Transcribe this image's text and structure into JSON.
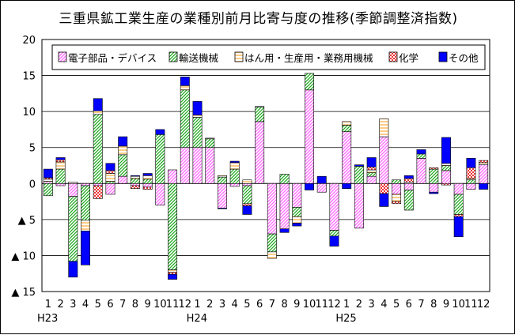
{
  "chart_data": {
    "type": "bar",
    "stacked": true,
    "title": "三重県鉱工業生産の業種別前月比寄与度の推移(季節調整済指数)",
    "ylim": [
      -15,
      20
    ],
    "yticks": [
      20,
      15,
      10,
      5,
      0,
      -5,
      -10,
      -15
    ],
    "ytick_labels": [
      "20",
      "15",
      "10",
      "5",
      "0",
      "▲ 5",
      "▲ 10",
      "▲ 15"
    ],
    "grid": true,
    "legend_position": "top-right",
    "categories": [
      "1",
      "2",
      "3",
      "4",
      "5",
      "6",
      "7",
      "8",
      "9",
      "10",
      "11",
      "12",
      "1",
      "2",
      "3",
      "4",
      "5",
      "6",
      "7",
      "8",
      "9",
      "10",
      "11",
      "12",
      "1",
      "2",
      "3",
      "4",
      "5",
      "6",
      "7",
      "8",
      "9",
      "10",
      "11",
      "12"
    ],
    "year_labels": [
      {
        "index": 0,
        "label": "H23"
      },
      {
        "index": 12,
        "label": "H24"
      },
      {
        "index": 24,
        "label": "H25"
      }
    ],
    "series": [
      {
        "name": "電子部品・デバイス",
        "color": "#ff66ff",
        "values": [
          0.3,
          -0.3,
          -1.8,
          -0.3,
          -0.3,
          -1.5,
          1.0,
          -0.3,
          -0.5,
          -3.0,
          1.9,
          5.0,
          5.0,
          5.0,
          -3.4,
          -0.4,
          -0.3,
          8.6,
          -7.0,
          -6.3,
          -3.3,
          13.0,
          -1.2,
          -6.5,
          7.2,
          -6.2,
          1.0,
          6.5,
          -1.5,
          -0.9,
          3.5,
          -1.2,
          1.8,
          -1.5,
          -0.8,
          2.6
        ]
      },
      {
        "name": "輸送機械",
        "color": "#22aa22",
        "values": [
          -1.7,
          2.0,
          -9.0,
          -4.8,
          9.6,
          0.3,
          3.0,
          0.7,
          0.6,
          6.8,
          -12.0,
          8.0,
          4.2,
          1.2,
          0.9,
          2.0,
          -2.5,
          2.0,
          -2.5,
          1.3,
          -1.3,
          2.3,
          0,
          -0.8,
          0.9,
          2.4,
          0.5,
          0,
          0.5,
          -2.8,
          0.6,
          2.0,
          0.7,
          -2.8,
          0.5,
          0
        ]
      },
      {
        "name": "はん用・生産用・業務用機械",
        "color": "#ffcc88",
        "values": [
          0.3,
          1.0,
          0.2,
          -1.5,
          0.5,
          1.1,
          1.2,
          0.3,
          0.5,
          0,
          -0.3,
          0.6,
          0.3,
          0.1,
          0.2,
          0.9,
          0.5,
          0.1,
          -0.9,
          0,
          -0.9,
          0,
          0,
          0,
          0.5,
          0,
          0.4,
          2.5,
          -1.0,
          0.2,
          0,
          0,
          0.3,
          0,
          0.2,
          0.3
        ]
      },
      {
        "name": "化学",
        "color": "#ee3333",
        "values": [
          0.2,
          0.3,
          0,
          0,
          -1.8,
          0.4,
          0,
          -0.4,
          -0.3,
          0,
          -0.3,
          0,
          0,
          0,
          0,
          0,
          -0.3,
          0,
          0,
          0,
          0,
          0,
          0,
          0,
          0,
          0,
          0.4,
          -1.4,
          -0.3,
          0.5,
          0,
          0.2,
          -0.2,
          -0.3,
          1.5,
          0.3
        ]
      },
      {
        "name": "その他",
        "color": "#0000ff",
        "values": [
          1.2,
          0.3,
          -2.2,
          -4.7,
          1.7,
          1.0,
          1.3,
          0.1,
          0.3,
          0.7,
          -0.7,
          1.2,
          1.9,
          0,
          -0.1,
          0.2,
          -1.2,
          0,
          0,
          -0.5,
          -0.4,
          -0.9,
          1.0,
          -1.4,
          -0.7,
          0.2,
          1.3,
          -1.8,
          0,
          0.4,
          0.6,
          -0.2,
          3.6,
          -2.8,
          1.3,
          -0.8
        ]
      }
    ]
  }
}
